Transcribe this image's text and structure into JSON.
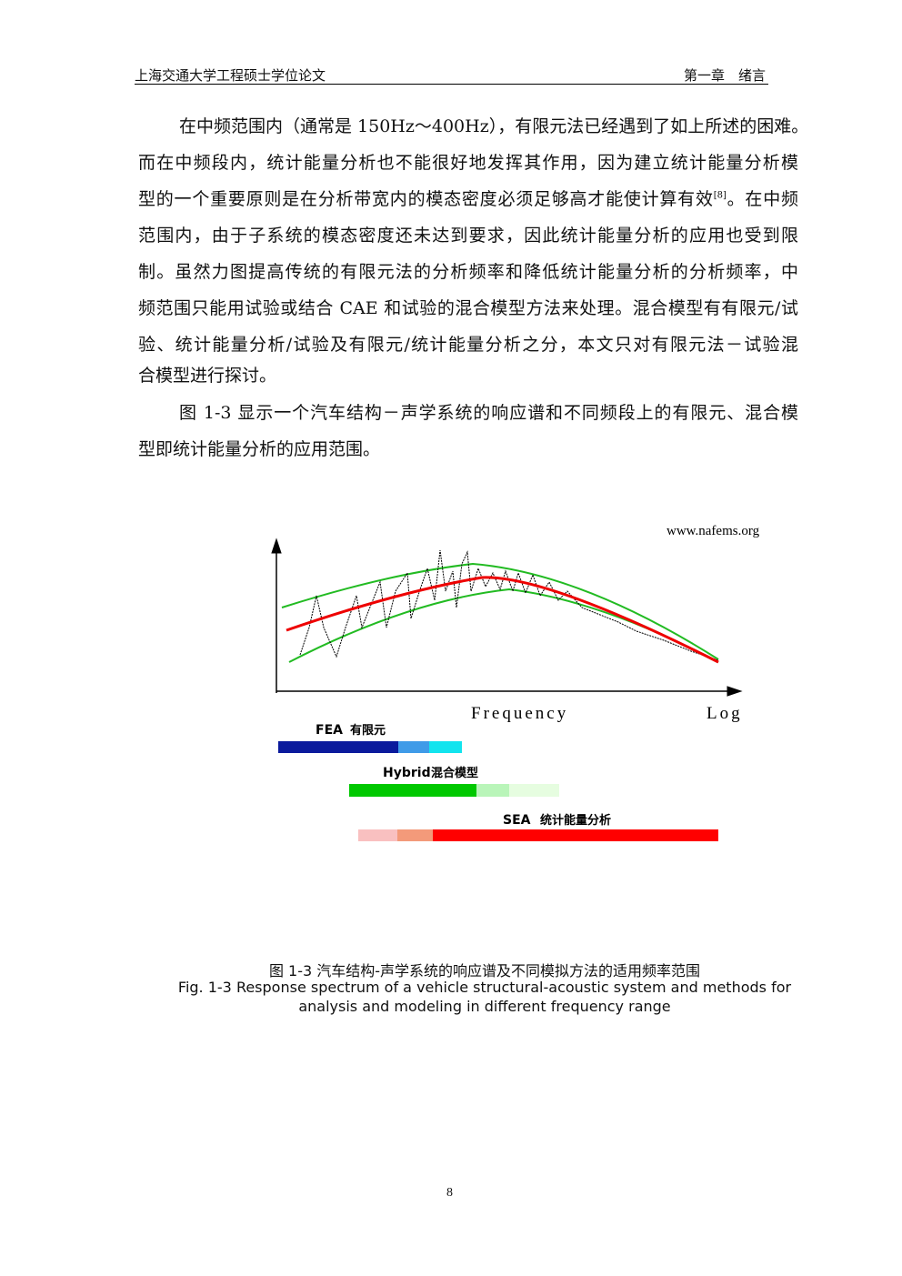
{
  "header": {
    "title": "上海交通大学工程硕士学位论文",
    "chapter": "第一章　绪言"
  },
  "body": {
    "paragraphs": [
      {
        "lines": [
          "在中频范围内（通常是 150Hz～400Hz），有限元法已经遇到了如上所述的困难。",
          "而在中频段内，统计能量分析也不能很好地发挥其作用，因为建立统计能量分析模",
          [
            "型的一个重要原则是在分析带宽内的模态密度必须足够高才能使计算有效",
            "[8]",
            "。在中频"
          ],
          "范围内，由于子系统的模态密度还未达到要求，因此统计能量分析的应用也受到限",
          "制。虽然力图提高传统的有限元法的分析频率和降低统计能量分析的分析频率，中",
          "频范围只能用试验或结合 CAE 和试验的混合模型方法来处理。混合模型有有限元/试",
          "验、统计能量分析/试验及有限元/统计能量分析之分，本文只对有限元法－试验混",
          "合模型进行探讨。"
        ]
      },
      {
        "lines": [
          "图 1-3 显示一个汽车结构－声学系统的响应谱和不同频段上的有限元、混合模",
          "型即统计能量分析的应用范围。"
        ]
      }
    ]
  },
  "figure": {
    "source": "www.nafems.org",
    "x_label": "Frequency",
    "x_scale": "Log",
    "ranges": [
      {
        "name": "FEA",
        "label": "有限元"
      },
      {
        "name": "Hybrid",
        "label": "混合模型"
      },
      {
        "name": "SEA",
        "label": "统计能量分析"
      }
    ],
    "caption": {
      "zh": "图 1-3 汽车结构-声学系统的响应谱及不同模拟方法的适用频率范围",
      "en_lines": [
        "Fig. 1-3 Response spectrum of a vehicle structural-acoustic system and methods for",
        "analysis and modeling in different frequency range"
      ]
    }
  },
  "footer": {
    "page": "8"
  }
}
